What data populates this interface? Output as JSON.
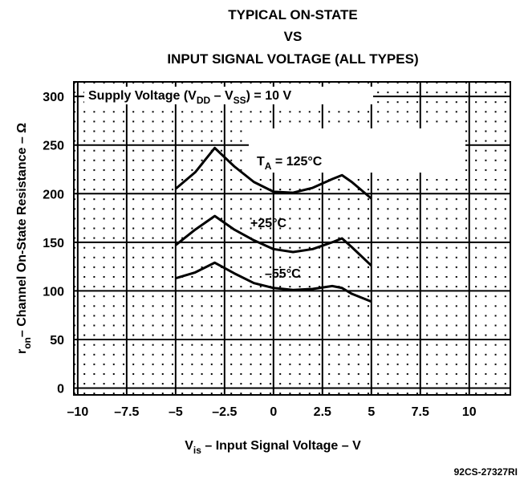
{
  "chart_data": {
    "type": "line",
    "title": [
      "TYPICAL ON-STATE",
      "VS",
      "INPUT SIGNAL VOLTAGE (ALL TYPES)"
    ],
    "x_label": [
      "V",
      "is",
      " – Input Signal Voltage – V"
    ],
    "y_label": [
      "r",
      "on",
      "– Channel On-State Resistance – Ω"
    ],
    "xlim": [
      -10.2,
      12.1
    ],
    "ylim": [
      -7,
      315
    ],
    "xticks": [
      {
        "value": -10,
        "label": "–10"
      },
      {
        "value": -7.5,
        "label": "–7.5"
      },
      {
        "value": -5,
        "label": "–5"
      },
      {
        "value": -2.5,
        "label": "–2.5"
      },
      0,
      2.5,
      5,
      7.5,
      10
    ],
    "yticks": [
      0,
      50,
      100,
      150,
      200,
      250,
      300
    ],
    "grid": true,
    "series": [
      {
        "color": "#000000",
        "x": [
          -5,
          -4,
          -3,
          -2,
          -1,
          0,
          1,
          2,
          3,
          3.5,
          4,
          5
        ],
        "values": [
          205,
          222,
          247,
          228,
          212,
          202,
          201,
          206,
          215,
          219,
          212,
          195
        ]
      },
      {
        "color": "#000000",
        "x": [
          -5,
          -4,
          -3,
          -2,
          -1,
          0,
          1,
          2,
          3,
          3.5,
          4,
          5
        ],
        "values": [
          147,
          163,
          177,
          163,
          152,
          143,
          140,
          143,
          150,
          154,
          145,
          126
        ]
      },
      {
        "color": "#000000",
        "x": [
          -5,
          -4,
          -3,
          -2,
          -1,
          0,
          1,
          2,
          3,
          3.5,
          4,
          5
        ],
        "values": [
          113,
          119,
          129,
          118,
          108,
          103,
          101,
          102,
          105,
          103,
          97,
          89
        ]
      }
    ],
    "annotations": {
      "supply": [
        "Supply Voltage (V",
        "DD",
        " – V",
        "SS",
        ") = 10 V"
      ],
      "t125": [
        "T",
        "A",
        " = 125°C"
      ],
      "t25": "+25°C",
      "t55": "–55°C",
      "code": "92CS-27327RI"
    }
  }
}
